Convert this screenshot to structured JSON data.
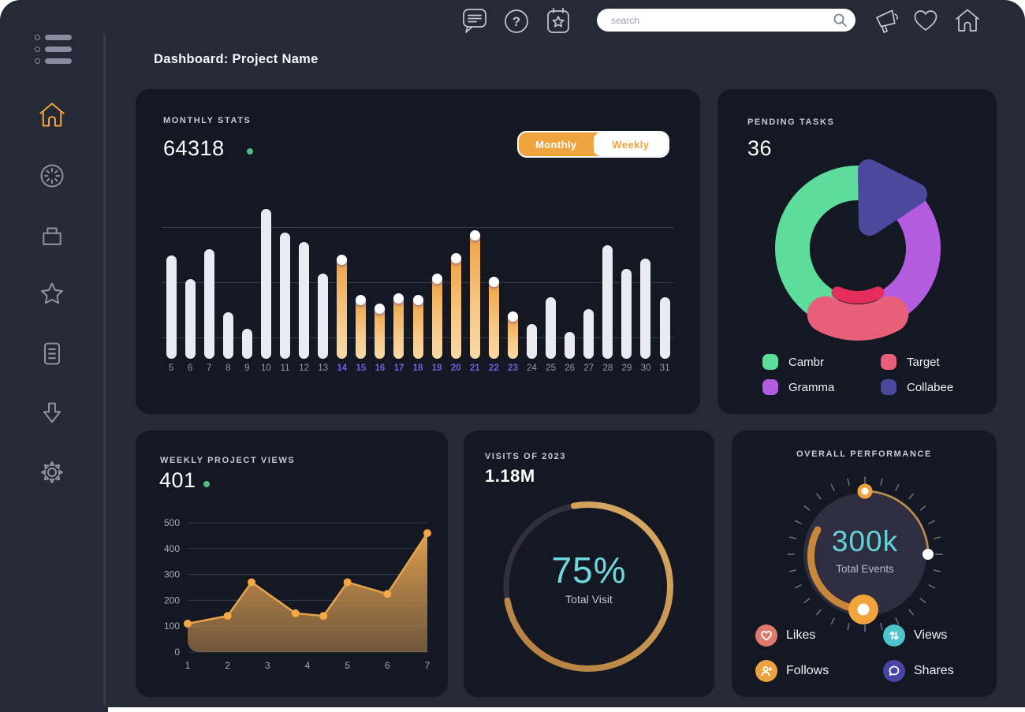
{
  "window": {
    "title": "Dashboard: Project Name"
  },
  "topbar": {
    "search_placeholder": "search",
    "help_glyph": "?",
    "left_icons": [
      "chat",
      "help",
      "calendar-event"
    ],
    "right_icons": [
      "announcements",
      "favorites",
      "home"
    ]
  },
  "sidebar": {
    "active": "home",
    "items": [
      "home",
      "history",
      "projects",
      "favorites",
      "documents",
      "downloads",
      "settings"
    ]
  },
  "cards": {
    "monthly_stats": {
      "label": "MONTHLY STATS",
      "value": "64318",
      "toggle": {
        "monthly": "Monthly",
        "weekly": "Weekly",
        "active": "Monthly",
        "accent": "#f0a43e"
      }
    },
    "pending_tasks": {
      "label": "PENDING TASKS",
      "value": "36",
      "inner_arc_color": "#e42d5b",
      "legend": [
        {
          "name": "Cambr",
          "color": "#5ddd9c"
        },
        {
          "name": "Target",
          "color": "#e85f79"
        },
        {
          "name": "Gramma",
          "color": "#b35ce0"
        },
        {
          "name": "Collabee",
          "color": "#4b489d"
        }
      ]
    },
    "weekly_views": {
      "label": "WEEKLY PROJECT VIEWS",
      "value": "401"
    },
    "visits": {
      "label": "VISITS OF 2023",
      "value": "1.18M",
      "percent_label": "75%",
      "caption": "Total Visit"
    },
    "performance": {
      "label": "OVERALL PERFORMANCE",
      "value": "300k",
      "caption": "Total Events",
      "legend": [
        {
          "name": "Likes",
          "color": "#dd7a6b",
          "icon": "heart"
        },
        {
          "name": "Views",
          "color": "#4ec4cb",
          "icon": "arrows-up-down"
        },
        {
          "name": "Follows",
          "color": "#eca23e",
          "icon": "person-plus"
        },
        {
          "name": "Shares",
          "color": "#4a45a5",
          "icon": "chat-bubble"
        }
      ]
    }
  },
  "chart_data": [
    {
      "id": "monthly_bars",
      "type": "bar",
      "title": "Monthly Stats",
      "categories": [
        5,
        6,
        7,
        8,
        9,
        10,
        11,
        12,
        13,
        14,
        15,
        16,
        17,
        18,
        19,
        20,
        21,
        22,
        23,
        24,
        25,
        26,
        27,
        28,
        29,
        30,
        31
      ],
      "values": [
        69,
        53,
        73,
        31,
        20,
        100,
        84,
        78,
        57,
        68,
        41,
        35,
        42,
        41,
        55,
        69,
        84,
        53,
        30,
        23,
        41,
        18,
        33,
        76,
        60,
        67,
        41
      ],
      "highlighted_categories": [
        14,
        15,
        16,
        17,
        18,
        19,
        20,
        21,
        22,
        23
      ],
      "ylim": [
        0,
        100
      ],
      "grid": true,
      "bar_color": "#eaeaf3",
      "highlight_top": "#f0a140",
      "highlight_bottom": "#f9d9a5"
    },
    {
      "id": "pending_donut",
      "type": "pie",
      "title": "Pending Tasks",
      "segments": [
        {
          "name": "Cambr",
          "value": 40,
          "color": "#5ddd9c"
        },
        {
          "name": "Gramma",
          "value": 26,
          "color": "#b35ce0"
        },
        {
          "name": "Target",
          "value": 19,
          "color": "#e85f79"
        },
        {
          "name": "Collabee",
          "value": 15,
          "color": "#4b489d"
        }
      ]
    },
    {
      "id": "weekly_area",
      "type": "area",
      "title": "Weekly Project Views",
      "x": [
        1,
        2,
        2.6,
        3.7,
        4.4,
        5,
        6,
        7
      ],
      "y": [
        110,
        140,
        270,
        150,
        140,
        270,
        225,
        460
      ],
      "xticks": [
        1,
        2,
        3,
        4,
        5,
        6,
        7
      ],
      "yticks": [
        0,
        100,
        200,
        300,
        400,
        500
      ],
      "ylim": [
        0,
        500
      ],
      "grid": true,
      "line_color": "#e8a44c",
      "dot_color": "#f5a843",
      "fill_top": "rgba(235,166,78,0.95)",
      "fill_bottom": "rgba(190,140,80,0.55)"
    },
    {
      "id": "visits_ring",
      "type": "radial-progress",
      "title": "Visits of 2023",
      "percent": 75,
      "arc_color_start": "#b27c3e",
      "arc_color_end": "#dcae66",
      "track_color": "#322f3f"
    },
    {
      "id": "performance_gauge",
      "type": "gauge",
      "title": "Overall Performance",
      "value": "300k",
      "ticks": 28,
      "tick_color": "#6e7286",
      "inner_circle_color": "#2f2d40",
      "thin_arc_color": "#b08a52",
      "thick_arc_color": "#c8883c",
      "knob_color": "#f2a43c"
    }
  ]
}
